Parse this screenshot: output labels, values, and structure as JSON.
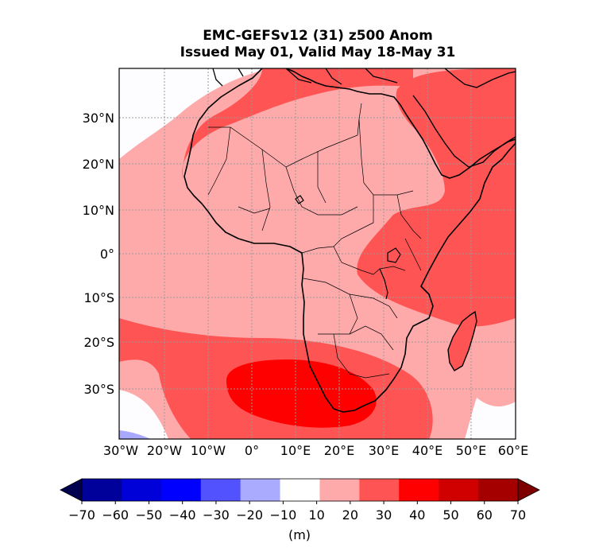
{
  "title": {
    "line1": "EMC-GEFSv12 (31) z500 Anom",
    "line2": "Issued May 01, Valid May 18-May 31"
  },
  "map": {
    "lat_labels": [
      "30°N",
      "20°N",
      "10°N",
      "0°",
      "10°S",
      "20°S",
      "30°S"
    ],
    "lon_labels": [
      "30°W",
      "20°W",
      "10°W",
      "0°",
      "10°E",
      "20°E",
      "30°E",
      "40°E",
      "50°E",
      "60°E"
    ],
    "gridlines": true
  },
  "colorbar": {
    "ticks": [
      "−70",
      "−60",
      "−50",
      "−40",
      "−30",
      "−20",
      "−10",
      "10",
      "20",
      "30",
      "40",
      "50",
      "60",
      "70"
    ],
    "unit": "(m)",
    "colors": [
      "#000050",
      "#00009a",
      "#0000d8",
      "#0000ff",
      "#5252ff",
      "#aaaaff",
      "#ffffff",
      "#ffaaaa",
      "#ff5454",
      "#ff0000",
      "#d00000",
      "#a50000",
      "#7c0000"
    ]
  }
}
